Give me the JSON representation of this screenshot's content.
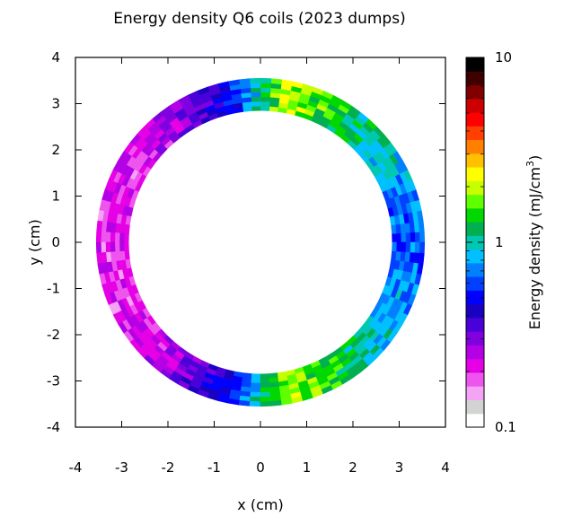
{
  "chart_data": {
    "type": "heatmap",
    "title": "Energy density Q6 coils (2023 dumps)",
    "xlabel": "x (cm)",
    "ylabel": "y (cm)",
    "xlim": [
      -4,
      4
    ],
    "ylim": [
      -4,
      4
    ],
    "xticks": [
      "-4",
      "-3",
      "-2",
      "-1",
      "0",
      "1",
      "2",
      "3",
      "4"
    ],
    "yticks": [
      "-4",
      "-3",
      "-2",
      "-1",
      "0",
      "1",
      "2",
      "3",
      "4"
    ],
    "grid": false,
    "colorbar": {
      "label": "Energy density (mJ/cm",
      "label_sup": "3",
      "label_end": ")",
      "scale": "log",
      "range": [
        0.1,
        10
      ],
      "ticks": [
        "0.1",
        "1",
        "10"
      ],
      "palette": [
        "#ffffff",
        "#d3d3d3",
        "#f5a3f5",
        "#ee55ee",
        "#e500e5",
        "#b400e5",
        "#8000e0",
        "#4a00d8",
        "#1a00c0",
        "#0000ff",
        "#0040ff",
        "#0080ff",
        "#00c0ff",
        "#00c8b0",
        "#00b050",
        "#00d800",
        "#60ff00",
        "#c8ff00",
        "#ffff00",
        "#ffc000",
        "#ff8000",
        "#ff4000",
        "#ff0000",
        "#cc0000",
        "#800000",
        "#400000",
        "#000000"
      ]
    },
    "ring": {
      "inner_radius_cm": 2.85,
      "outer_radius_cm": 3.55,
      "center_cm": [
        0,
        0
      ],
      "radial_bins": 7,
      "angular_bins": 96
    },
    "angular_profile": {
      "angle_deg": [
        0,
        20,
        40,
        60,
        80,
        90,
        100,
        120,
        140,
        160,
        180,
        200,
        220,
        240,
        260,
        270,
        280,
        300,
        320,
        340,
        360
      ],
      "energy_density": [
        0.6,
        0.75,
        0.95,
        1.3,
        2.0,
        1.0,
        0.55,
        0.3,
        0.22,
        0.2,
        0.2,
        0.2,
        0.22,
        0.3,
        0.55,
        1.0,
        2.0,
        1.3,
        0.95,
        0.75,
        0.6
      ]
    }
  }
}
